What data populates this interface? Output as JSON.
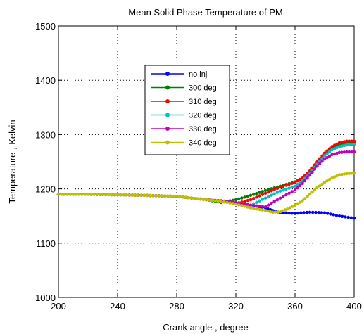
{
  "chart_data": {
    "type": "line",
    "title": "Mean Solid Phase Temperature of PM",
    "xlabel": "Crank angle , degree",
    "ylabel": "Temperature , Kelvin",
    "xlim": [
      200,
      400
    ],
    "ylim": [
      1000,
      1500
    ],
    "xticks": [
      200,
      240,
      280,
      320,
      360,
      400
    ],
    "yticks": [
      1000,
      1100,
      1200,
      1300,
      1400,
      1500
    ],
    "grid": true,
    "legend_position": "upper-middle",
    "series": [
      {
        "name": "no inj",
        "color": "#0000ff",
        "x": [
          200,
          220,
          240,
          260,
          280,
          290,
          300,
          310,
          320,
          330,
          340,
          345,
          350,
          360,
          370,
          380,
          390,
          400
        ],
        "y": [
          1190,
          1190,
          1189,
          1188,
          1186,
          1183,
          1180,
          1178,
          1175,
          1170,
          1165,
          1160,
          1156,
          1155,
          1157,
          1156,
          1150,
          1146
        ]
      },
      {
        "name": "300 deg",
        "color": "#008000",
        "x": [
          200,
          220,
          240,
          260,
          280,
          290,
          300,
          310,
          320,
          330,
          340,
          350,
          360,
          365,
          370,
          375,
          380,
          385,
          390,
          395,
          400
        ],
        "y": [
          1190,
          1190,
          1189,
          1188,
          1186,
          1183,
          1180,
          1175,
          1180,
          1188,
          1197,
          1205,
          1213,
          1220,
          1232,
          1248,
          1263,
          1275,
          1282,
          1285,
          1285
        ]
      },
      {
        "name": "310 deg",
        "color": "#ff0000",
        "x": [
          200,
          220,
          240,
          260,
          280,
          290,
          300,
          310,
          320,
          330,
          340,
          350,
          360,
          365,
          370,
          375,
          380,
          385,
          390,
          395,
          400
        ],
        "y": [
          1190,
          1190,
          1189,
          1188,
          1186,
          1183,
          1180,
          1178,
          1173,
          1180,
          1192,
          1203,
          1212,
          1220,
          1233,
          1250,
          1266,
          1278,
          1285,
          1288,
          1288
        ]
      },
      {
        "name": "320 deg",
        "color": "#00bfbf",
        "x": [
          200,
          220,
          240,
          260,
          280,
          290,
          300,
          310,
          320,
          330,
          340,
          350,
          360,
          365,
          370,
          375,
          380,
          385,
          390,
          395,
          400
        ],
        "y": [
          1190,
          1190,
          1189,
          1188,
          1186,
          1183,
          1180,
          1178,
          1175,
          1170,
          1183,
          1196,
          1205,
          1215,
          1228,
          1245,
          1261,
          1272,
          1278,
          1281,
          1282
        ]
      },
      {
        "name": "330 deg",
        "color": "#bf00bf",
        "x": [
          200,
          220,
          240,
          260,
          280,
          290,
          300,
          310,
          320,
          330,
          340,
          350,
          360,
          365,
          370,
          375,
          380,
          385,
          390,
          395,
          400
        ],
        "y": [
          1190,
          1190,
          1189,
          1188,
          1186,
          1183,
          1180,
          1178,
          1175,
          1170,
          1167,
          1183,
          1198,
          1210,
          1225,
          1242,
          1255,
          1263,
          1267,
          1268,
          1268
        ]
      },
      {
        "name": "340 deg",
        "color": "#bfbf00",
        "x": [
          200,
          220,
          240,
          260,
          280,
          290,
          300,
          310,
          320,
          330,
          340,
          345,
          350,
          355,
          360,
          365,
          370,
          375,
          380,
          385,
          390,
          395,
          400
        ],
        "y": [
          1190,
          1190,
          1189,
          1188,
          1186,
          1183,
          1180,
          1177,
          1172,
          1165,
          1160,
          1157,
          1158,
          1163,
          1170,
          1178,
          1190,
          1202,
          1212,
          1220,
          1226,
          1228,
          1229
        ]
      }
    ]
  }
}
